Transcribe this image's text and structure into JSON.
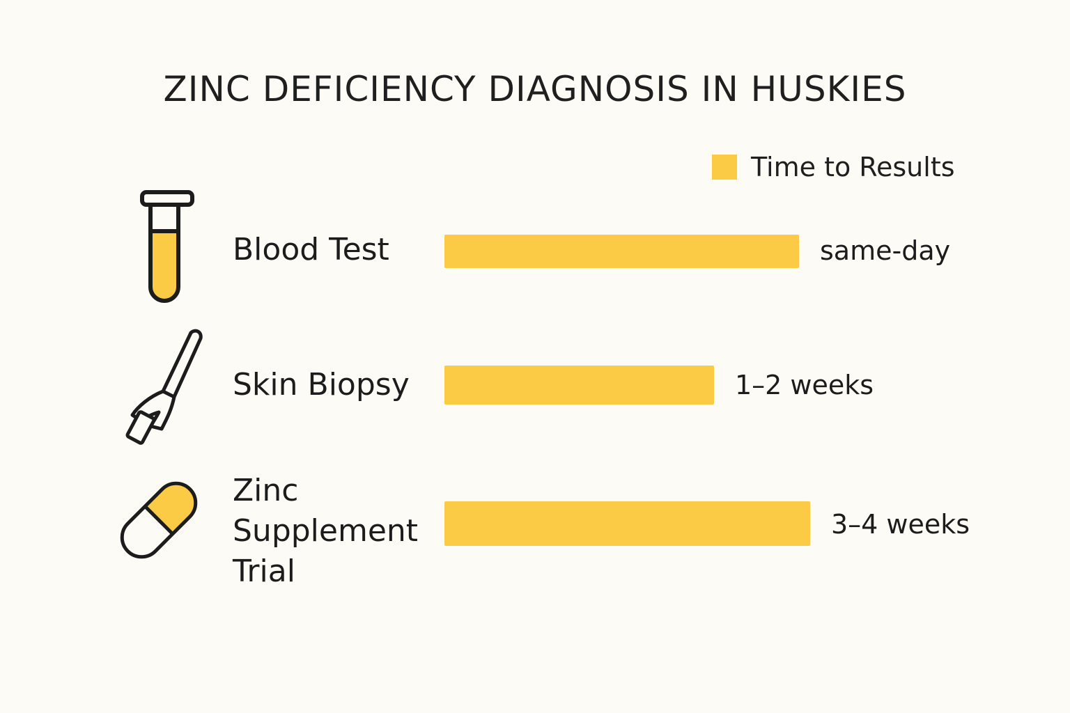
{
  "title": "ZINC DEFICIENCY DIAGNOSIS IN HUSKIES",
  "legend": {
    "label": "Time to Results"
  },
  "colors": {
    "accent": "#FBCB45",
    "background": "#FCFBF6",
    "text": "#1C1C1C"
  },
  "chart_data": {
    "type": "bar",
    "orientation": "horizontal",
    "title": "ZINC DEFICIENCY DIAGNOSIS IN HUSKIES",
    "legend": [
      "Time to Results"
    ],
    "legend_position": "top-right",
    "grid": false,
    "categories": [
      "Blood Test",
      "Skin Biopsy",
      "Zinc\nSupplement\nTrial"
    ],
    "value_labels": [
      "same-day",
      "1–2 weeks",
      "3–4 weeks"
    ],
    "series": [
      {
        "name": "Time to Results",
        "values": [
          0.96,
          0.73,
          0.99
        ]
      }
    ],
    "icons": [
      "test-tube-icon",
      "biopsy-punch-icon",
      "capsule-icon"
    ]
  }
}
